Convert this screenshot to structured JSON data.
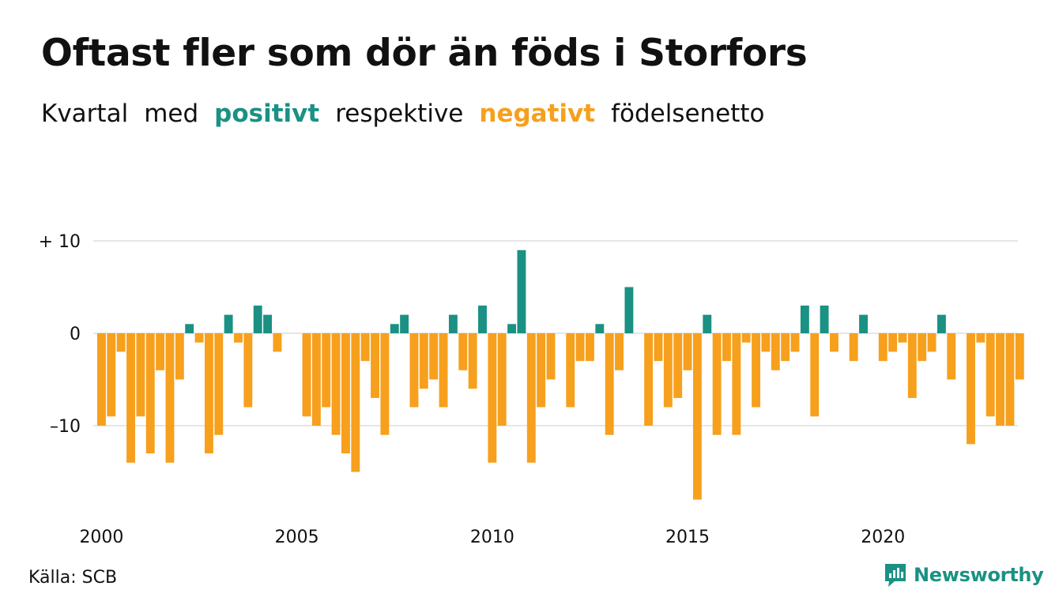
{
  "header": {
    "title": "Oftast fler som dör än föds i Storfors",
    "subtitle": {
      "word1": "Kvartal",
      "word2": "med",
      "positive": "positivt",
      "word3": "respektive",
      "negative": "negativt",
      "word4": "födelsenetto"
    }
  },
  "footer": {
    "source": "Källa: SCB",
    "brand": "Newsworthy"
  },
  "colors": {
    "positive": "#1a9183",
    "negative": "#f6a01d",
    "grid": "#dddddd",
    "brand": "#1a9183"
  },
  "icons": {
    "brand": "newsworthy-logo-icon"
  },
  "chart_data": {
    "type": "bar",
    "x_start": 2000,
    "period": "quarter",
    "ylim": [
      -19,
      10
    ],
    "yticks": [
      {
        "value": 10,
        "label": "+ 10"
      },
      {
        "value": 0,
        "label": "0"
      },
      {
        "value": -10,
        "label": "–10"
      }
    ],
    "xticks": [
      {
        "value": 2000,
        "label": "2000"
      },
      {
        "value": 2005,
        "label": "2005"
      },
      {
        "value": 2010,
        "label": "2010"
      },
      {
        "value": 2015,
        "label": "2015"
      },
      {
        "value": 2020,
        "label": "2020"
      }
    ],
    "grid": true,
    "values": [
      -10,
      -9,
      -2,
      -14,
      -9,
      -13,
      -4,
      -14,
      -5,
      1,
      -1,
      -13,
      -11,
      2,
      -1,
      -8,
      3,
      2,
      -2,
      0,
      0,
      -9,
      -10,
      -8,
      -11,
      -13,
      -15,
      -3,
      -7,
      -11,
      1,
      2,
      -8,
      -6,
      -5,
      -8,
      2,
      -4,
      -6,
      3,
      -14,
      -10,
      1,
      9,
      -14,
      -8,
      -5,
      0,
      -8,
      -3,
      -3,
      1,
      -11,
      -4,
      5,
      0,
      -10,
      -3,
      -8,
      -7,
      -4,
      -18,
      2,
      -11,
      -3,
      -11,
      -1,
      -8,
      -2,
      -4,
      -3,
      -2,
      3,
      -9,
      3,
      -2,
      0,
      -3,
      2,
      0,
      -3,
      -2,
      -1,
      -7,
      -3,
      -2,
      2,
      -5,
      0,
      -12,
      -1,
      -9,
      -10,
      -10,
      -5
    ]
  }
}
